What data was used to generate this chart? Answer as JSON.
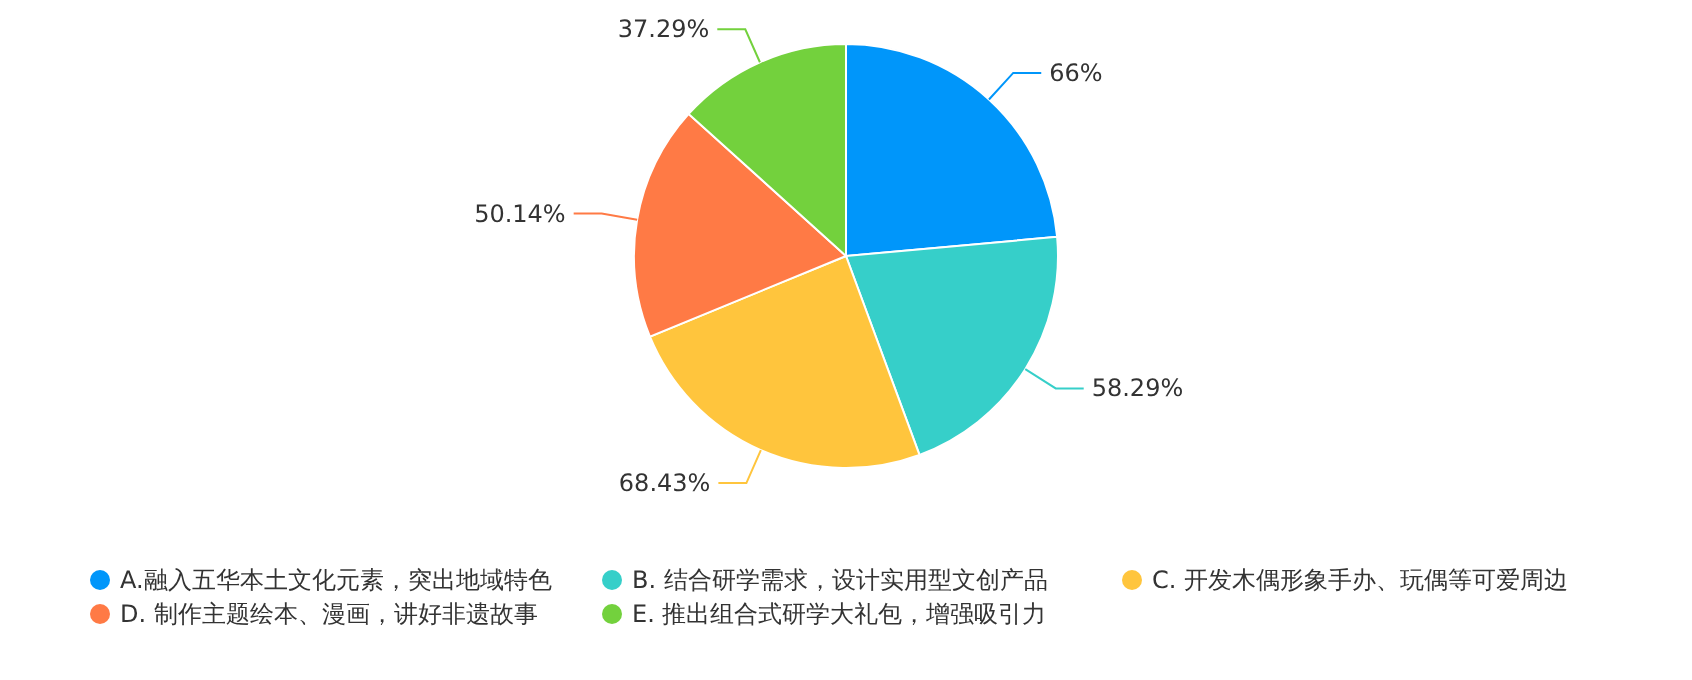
{
  "chart_data": {
    "type": "pie",
    "categories": [
      "A.融入五华本土文化元素，突出地域特色",
      "B. 结合研学需求，设计实用型文创产品",
      "C. 开发木偶形象手办、玩偶等可爱周边",
      "D. 制作主题绘本、漫画，讲好非遗故事",
      "E. 推出组合式研学大礼包，增强吸引力"
    ],
    "values": [
      66,
      58.29,
      68.43,
      50.14,
      37.29
    ],
    "value_labels": [
      "66%",
      "58.29%",
      "68.43%",
      "50.14%",
      "37.29%"
    ],
    "colors": [
      "#0096fa",
      "#36cfc9",
      "#ffc53d",
      "#ff7a45",
      "#73d13d"
    ],
    "legend": "bottom"
  }
}
